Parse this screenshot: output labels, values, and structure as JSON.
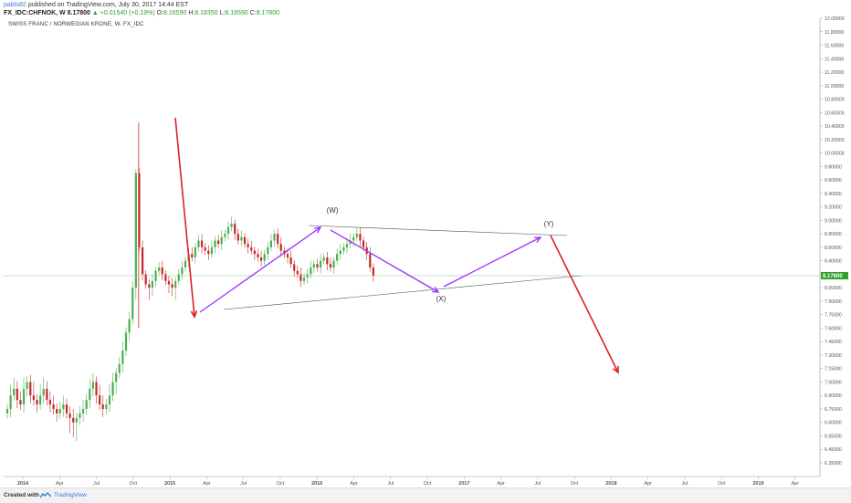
{
  "header": {
    "line1_user": "pablo82",
    "line1_rest": "published on TradingView.com, July 30, 2017 14:44 EST",
    "symbol": "FX_IDC:CHFNOK, W",
    "last": "8.17800",
    "change": "▲ +0.01540 (+0.19%)",
    "o_label": "O:",
    "o_val": "8.16590",
    "h_label": "H:",
    "h_val": "8.18350",
    "l_label": "L:",
    "l_val": "8.16590",
    "c_label": "C:",
    "c_val": "8.17800"
  },
  "sublabel": "SWISS FRANC / NORWEGIAN KRONE, W, FX_IDC",
  "footer": {
    "created": "Created with",
    "brand": "TradingView"
  },
  "colors": {
    "up": "#4caf50",
    "down": "#c62828",
    "accent": "#3a7bd5",
    "wave": "#9b30ff",
    "forecast": "#e02020",
    "trendline": "#555555"
  },
  "icons": {
    "footer": "tradingview-logo-icon"
  },
  "chart_data": {
    "type": "candlestick",
    "ylim": [
      6.3,
      12.0
    ],
    "y_ticks": [
      "12.00000",
      "11.80000",
      "11.60000",
      "11.40000",
      "11.20000",
      "11.00000",
      "10.80000",
      "10.60000",
      "10.40000",
      "10.20000",
      "10.00000",
      "9.80000",
      "9.60000",
      "9.40000",
      "9.20000",
      "9.00000",
      "8.80000",
      "8.60000",
      "8.40000",
      "8.20000",
      "8.00000",
      "7.90000",
      "7.75000",
      "7.60000",
      "7.45000",
      "7.30000",
      "7.15000",
      "7.00000",
      "6.90000",
      "6.75000",
      "6.60000",
      "6.55000",
      "6.45000",
      "6.35000"
    ],
    "x_ticks": [
      "2014",
      "Apr",
      "Jul",
      "Oct",
      "2015",
      "Apr",
      "Jul",
      "Oct",
      "2016",
      "Apr",
      "Jul",
      "Oct",
      "2017",
      "Apr",
      "Jul",
      "Oct",
      "2018",
      "Apr",
      "Jul",
      "Oct",
      "2019",
      "Apr"
    ],
    "last_price": "8.17800",
    "wave_labels": [
      "(W)",
      "(X)",
      "(Y)"
    ],
    "close_series": [
      6.75,
      6.9,
      6.95,
      6.85,
      6.8,
      6.95,
      7.0,
      6.9,
      6.85,
      6.8,
      6.9,
      6.95,
      6.85,
      6.8,
      6.75,
      6.7,
      6.75,
      6.8,
      6.7,
      6.65,
      6.6,
      6.65,
      6.7,
      6.75,
      6.85,
      6.95,
      7.0,
      6.9,
      6.8,
      6.75,
      6.8,
      6.9,
      7.0,
      7.1,
      7.2,
      7.35,
      7.55,
      7.7,
      8.0,
      9.7,
      8.6,
      8.2,
      8.05,
      8.0,
      8.1,
      8.25,
      8.3,
      8.2,
      8.1,
      8.05,
      8.0,
      8.1,
      8.2,
      8.3,
      8.4,
      8.5,
      8.45,
      8.6,
      8.7,
      8.6,
      8.55,
      8.5,
      8.6,
      8.7,
      8.65,
      8.75,
      8.8,
      8.9,
      8.95,
      8.8,
      8.7,
      8.75,
      8.65,
      8.6,
      8.55,
      8.5,
      8.45,
      8.4,
      8.5,
      8.6,
      8.7,
      8.8,
      8.65,
      8.55,
      8.5,
      8.45,
      8.35,
      8.25,
      8.2,
      8.1,
      8.15,
      8.2,
      8.3,
      8.35,
      8.3,
      8.4,
      8.45,
      8.35,
      8.3,
      8.4,
      8.5,
      8.55,
      8.6,
      8.65,
      8.7,
      8.75,
      8.8,
      8.7,
      8.6,
      8.5,
      8.3,
      8.18
    ],
    "forecast_points": [
      [
        2017.5,
        8.85
      ],
      [
        2017.9,
        7.35
      ]
    ]
  }
}
